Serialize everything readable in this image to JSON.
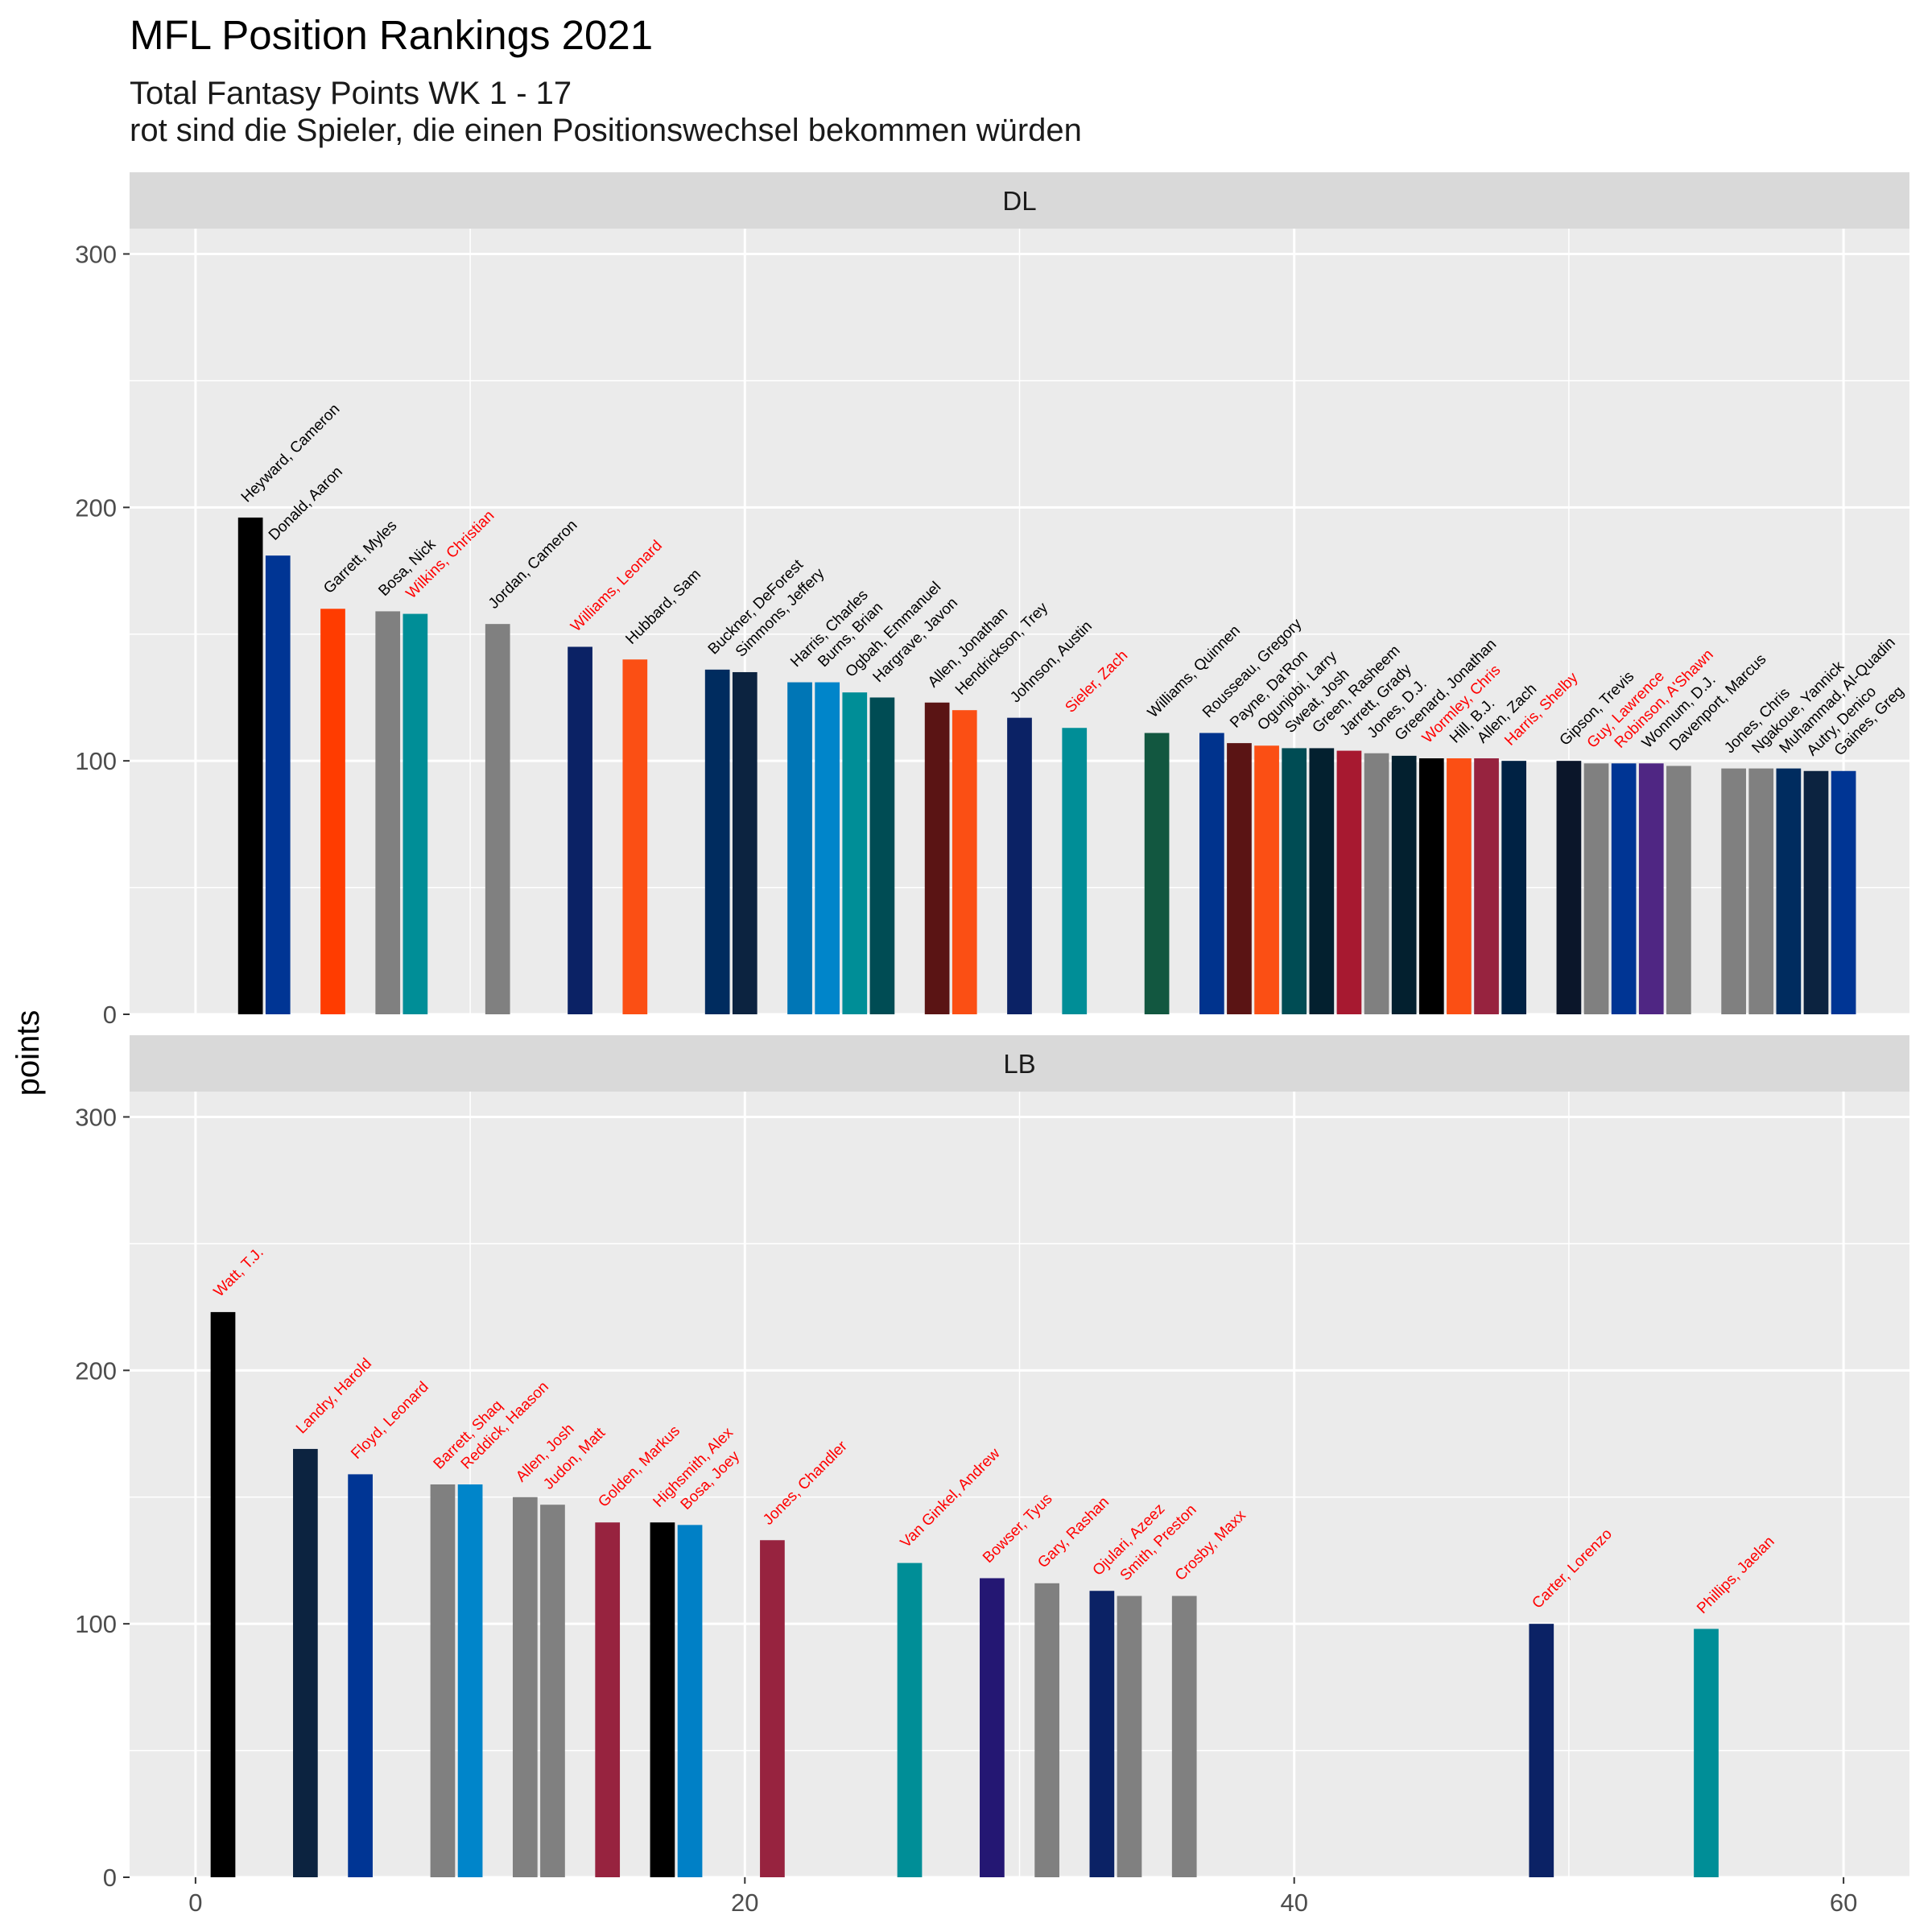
{
  "chart_data": {
    "type": "bar",
    "title": "MFL Position Rankings 2021",
    "subtitle_lines": [
      "Total Fantasy Points WK 1 - 17",
      "rot sind die Spieler, die einen Positionswechsel bekommen würden"
    ],
    "ylabel": "points",
    "xlabel": "",
    "xlim": [
      -2.4,
      62.4
    ],
    "ylim": [
      0,
      310
    ],
    "x_ticks": [
      0,
      20,
      40,
      60
    ],
    "y_ticks": [
      0,
      100,
      200,
      300
    ],
    "grid": true,
    "legend": "none",
    "highlight_color": "#ff0000",
    "default_label_color": "#000000",
    "panels": [
      {
        "name": "DL",
        "points": [
          {
            "x": 2,
            "y": 196,
            "label": "Heyward, Cameron",
            "color": "#000000",
            "red": false
          },
          {
            "x": 3,
            "y": 181,
            "label": "Donald, Aaron",
            "color": "#003594",
            "red": false
          },
          {
            "x": 5,
            "y": 160,
            "label": "Garrett, Myles",
            "color": "#FF3C00",
            "red": false
          },
          {
            "x": 7,
            "y": 159,
            "label": "Bosa, Nick",
            "color": "#808080",
            "red": false
          },
          {
            "x": 8,
            "y": 158,
            "label": "Wilkins, Christian",
            "color": "#008E97",
            "red": true
          },
          {
            "x": 11,
            "y": 154,
            "label": "Jordan, Cameron",
            "color": "#808080",
            "red": false
          },
          {
            "x": 14,
            "y": 145,
            "label": "Williams, Leonard",
            "color": "#0B2265",
            "red": true
          },
          {
            "x": 16,
            "y": 140,
            "label": "Hubbard, Sam",
            "color": "#FB4F14",
            "red": false
          },
          {
            "x": 19,
            "y": 136,
            "label": "Buckner, DeForest",
            "color": "#002C5F",
            "red": false
          },
          {
            "x": 20,
            "y": 135,
            "label": "Simmons, Jeffery",
            "color": "#0C2340",
            "red": false
          },
          {
            "x": 22,
            "y": 131,
            "label": "Harris, Charles",
            "color": "#0076B6",
            "red": false
          },
          {
            "x": 23,
            "y": 131,
            "label": "Burns, Brian",
            "color": "#0085CA",
            "red": false
          },
          {
            "x": 24,
            "y": 127,
            "label": "Ogbah, Emmanuel",
            "color": "#008E97",
            "red": false
          },
          {
            "x": 25,
            "y": 125,
            "label": "Hargrave, Javon",
            "color": "#004C54",
            "red": false
          },
          {
            "x": 27,
            "y": 123,
            "label": "Allen, Jonathan",
            "color": "#5A1414",
            "red": false
          },
          {
            "x": 28,
            "y": 120,
            "label": "Hendrickson, Trey",
            "color": "#FB4F14",
            "red": false
          },
          {
            "x": 30,
            "y": 117,
            "label": "Johnson, Austin",
            "color": "#0B2265",
            "red": false
          },
          {
            "x": 32,
            "y": 113,
            "label": "Sieler, Zach",
            "color": "#008E97",
            "red": true
          },
          {
            "x": 35,
            "y": 111,
            "label": "Williams, Quinnen",
            "color": "#125740",
            "red": false
          },
          {
            "x": 37,
            "y": 111,
            "label": "Rousseau, Gregory",
            "color": "#00338D",
            "red": false
          },
          {
            "x": 38,
            "y": 107,
            "label": "Payne, Da'Ron",
            "color": "#5A1414",
            "red": false
          },
          {
            "x": 39,
            "y": 106,
            "label": "Ogunjobi, Larry",
            "color": "#FB4F14",
            "red": false
          },
          {
            "x": 40,
            "y": 105,
            "label": "Sweat, Josh",
            "color": "#004C54",
            "red": false
          },
          {
            "x": 41,
            "y": 105,
            "label": "Green, Rasheem",
            "color": "#03202F",
            "red": false
          },
          {
            "x": 42,
            "y": 104,
            "label": "Jarrett, Grady",
            "color": "#A71930",
            "red": false
          },
          {
            "x": 43,
            "y": 103,
            "label": "Jones, D.J.",
            "color": "#808080",
            "red": false
          },
          {
            "x": 44,
            "y": 102,
            "label": "Greenard, Jonathan",
            "color": "#03202F",
            "red": false
          },
          {
            "x": 45,
            "y": 101,
            "label": "Wormley, Chris",
            "color": "#000000",
            "red": true
          },
          {
            "x": 46,
            "y": 101,
            "label": "Hill, B.J.",
            "color": "#FB4F14",
            "red": false
          },
          {
            "x": 47,
            "y": 101,
            "label": "Allen, Zach",
            "color": "#97233F",
            "red": false
          },
          {
            "x": 48,
            "y": 100,
            "label": "Harris, Shelby",
            "color": "#002244",
            "red": true
          },
          {
            "x": 50,
            "y": 100,
            "label": "Gipson, Trevis",
            "color": "#0B162A",
            "red": false
          },
          {
            "x": 51,
            "y": 99,
            "label": "Guy, Lawrence",
            "color": "#808080",
            "red": true
          },
          {
            "x": 52,
            "y": 99,
            "label": "Robinson, A'Shawn",
            "color": "#003594",
            "red": true
          },
          {
            "x": 53,
            "y": 99,
            "label": "Wonnum, D.J.",
            "color": "#4F2683",
            "red": false
          },
          {
            "x": 54,
            "y": 98,
            "label": "Davenport, Marcus",
            "color": "#808080",
            "red": false
          },
          {
            "x": 56,
            "y": 97,
            "label": "Jones, Chris",
            "color": "#808080",
            "red": false
          },
          {
            "x": 57,
            "y": 97,
            "label": "Ngakoue, Yannick",
            "color": "#808080",
            "red": false
          },
          {
            "x": 58,
            "y": 97,
            "label": "Muhammad, Al-Quadin",
            "color": "#002C5F",
            "red": false
          },
          {
            "x": 59,
            "y": 96,
            "label": "Autry, Denico",
            "color": "#0C2340",
            "red": false
          },
          {
            "x": 60,
            "y": 96,
            "label": "Gaines, Greg",
            "color": "#003594",
            "red": false
          }
        ]
      },
      {
        "name": "LB",
        "points": [
          {
            "x": 1,
            "y": 223,
            "label": "Watt, T.J.",
            "color": "#000000",
            "red": true
          },
          {
            "x": 4,
            "y": 169,
            "label": "Landry, Harold",
            "color": "#0C2340",
            "red": true
          },
          {
            "x": 6,
            "y": 159,
            "label": "Floyd, Leonard",
            "color": "#003594",
            "red": true
          },
          {
            "x": 9,
            "y": 155,
            "label": "Barrett, Shaq",
            "color": "#808080",
            "red": true
          },
          {
            "x": 10,
            "y": 155,
            "label": "Reddick, Haason",
            "color": "#0085CA",
            "red": true
          },
          {
            "x": 12,
            "y": 150,
            "label": "Allen, Josh",
            "color": "#808080",
            "red": true
          },
          {
            "x": 13,
            "y": 147,
            "label": "Judon, Matt",
            "color": "#808080",
            "red": true
          },
          {
            "x": 15,
            "y": 140,
            "label": "Golden, Markus",
            "color": "#97233F",
            "red": true
          },
          {
            "x": 17,
            "y": 140,
            "label": "Highsmith, Alex",
            "color": "#000000",
            "red": true
          },
          {
            "x": 18,
            "y": 139,
            "label": "Bosa, Joey",
            "color": "#0080C6",
            "red": true
          },
          {
            "x": 21,
            "y": 133,
            "label": "Jones, Chandler",
            "color": "#97233F",
            "red": true
          },
          {
            "x": 26,
            "y": 124,
            "label": "Van Ginkel, Andrew",
            "color": "#008E97",
            "red": true
          },
          {
            "x": 29,
            "y": 118,
            "label": "Bowser, Tyus",
            "color": "#241773",
            "red": true
          },
          {
            "x": 31,
            "y": 116,
            "label": "Gary, Rashan",
            "color": "#808080",
            "red": true
          },
          {
            "x": 33,
            "y": 113,
            "label": "Ojulari, Azeez",
            "color": "#0B2265",
            "red": true
          },
          {
            "x": 34,
            "y": 111,
            "label": "Smith, Preston",
            "color": "#808080",
            "red": true
          },
          {
            "x": 36,
            "y": 111,
            "label": "Crosby, Maxx",
            "color": "#808080",
            "red": true
          },
          {
            "x": 49,
            "y": 100,
            "label": "Carter, Lorenzo",
            "color": "#0B2265",
            "red": true
          },
          {
            "x": 55,
            "y": 98,
            "label": "Phillips, Jaelan",
            "color": "#008E97",
            "red": true
          }
        ]
      }
    ]
  }
}
